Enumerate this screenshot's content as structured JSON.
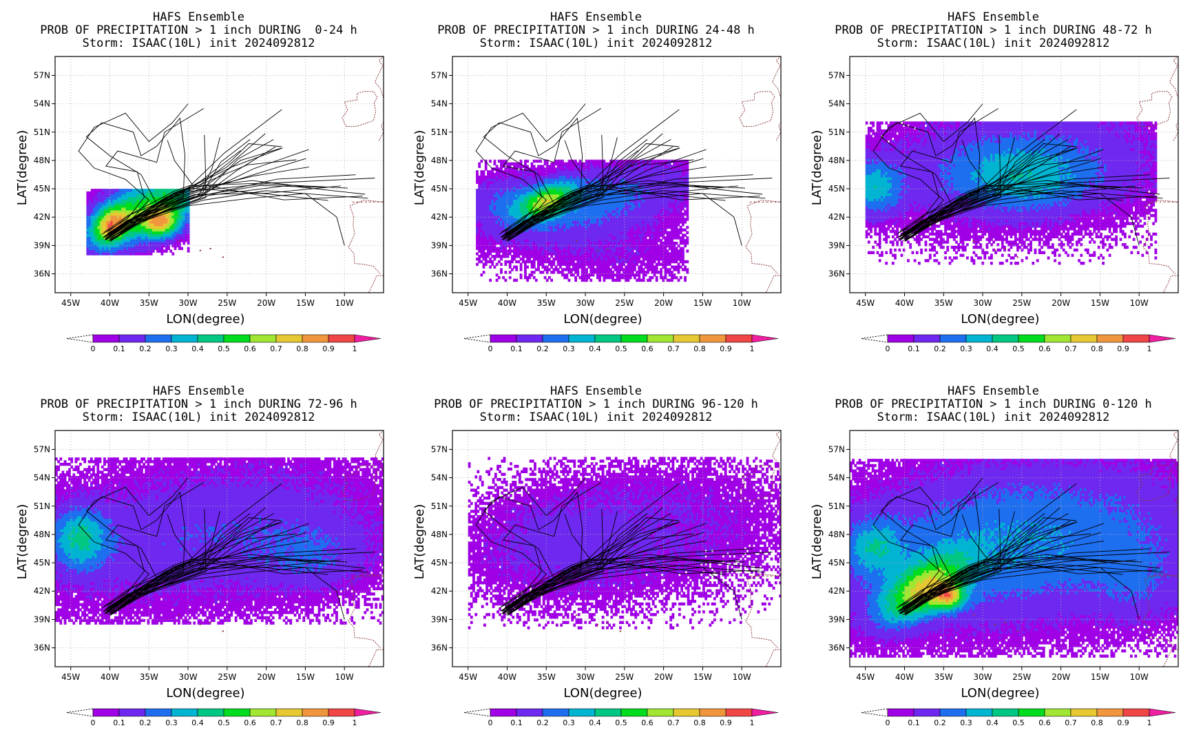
{
  "figure_title": "HAFS Ensemble",
  "colorbar": {
    "labels": [
      "0",
      "0.1",
      "0.2",
      "0.3",
      "0.4",
      "0.5",
      "0.6",
      "0.7",
      "0.8",
      "0.9",
      "1"
    ],
    "colors": [
      "#a000e6",
      "#6e28f0",
      "#1e6ef0",
      "#00b4d2",
      "#00c882",
      "#00dc1e",
      "#a0e632",
      "#e6c832",
      "#f0963c",
      "#f04646",
      "#f01ea0"
    ]
  },
  "land_border_color": "#8b3a3a",
  "track_color": "#000000",
  "chart_data": [
    {
      "type": "heatmap",
      "title": "HAFS Ensemble",
      "subtitle": "PROB OF PRECIPITATION > 1 inch DURING  0-24 h",
      "storm_line": "Storm: ISAAC(10L) init 2024092812",
      "period": "0-24 h",
      "xlabel": "LON(degree)",
      "ylabel": "LAT(degree)",
      "xlim": [
        -47,
        -5
      ],
      "ylim": [
        34,
        59
      ],
      "x_ticks": [
        "45W",
        "40W",
        "35W",
        "30W",
        "25W",
        "20W",
        "15W",
        "10W"
      ],
      "y_ticks": [
        "36N",
        "39N",
        "42N",
        "45N",
        "48N",
        "51N",
        "54N",
        "57N"
      ],
      "grid": true,
      "max_prob_location": [
        -40,
        41
      ],
      "max_prob": 0.9
    },
    {
      "type": "heatmap",
      "title": "HAFS Ensemble",
      "subtitle": "PROB OF PRECIPITATION > 1 inch DURING 24-48 h",
      "storm_line": "Storm: ISAAC(10L) init 2024092812",
      "period": "24-48 h",
      "xlabel": "LON(degree)",
      "ylabel": "LAT(degree)",
      "xlim": [
        -47,
        -5
      ],
      "ylim": [
        34,
        59
      ],
      "x_ticks": [
        "45W",
        "40W",
        "35W",
        "30W",
        "25W",
        "20W",
        "15W",
        "10W"
      ],
      "y_ticks": [
        "36N",
        "39N",
        "42N",
        "45N",
        "48N",
        "51N",
        "54N",
        "57N"
      ],
      "grid": true,
      "max_prob_location": [
        -34,
        43.5
      ],
      "max_prob": 0.7
    },
    {
      "type": "heatmap",
      "title": "HAFS Ensemble",
      "subtitle": "PROB OF PRECIPITATION > 1 inch DURING 48-72 h",
      "storm_line": "Storm: ISAAC(10L) init 2024092812",
      "period": "48-72 h",
      "xlabel": "LON(degree)",
      "ylabel": "LAT(degree)",
      "xlim": [
        -47,
        -5
      ],
      "ylim": [
        34,
        59
      ],
      "x_ticks": [
        "45W",
        "40W",
        "35W",
        "30W",
        "25W",
        "20W",
        "15W",
        "10W"
      ],
      "y_ticks": [
        "36N",
        "39N",
        "42N",
        "45N",
        "48N",
        "51N",
        "54N",
        "57N"
      ],
      "grid": true,
      "max_prob_location": [
        -28,
        47
      ],
      "max_prob": 0.4
    },
    {
      "type": "heatmap",
      "title": "HAFS Ensemble",
      "subtitle": "PROB OF PRECIPITATION > 1 inch DURING 72-96 h",
      "storm_line": "Storm: ISAAC(10L) init 2024092812",
      "period": "72-96 h",
      "xlabel": "LON(degree)",
      "ylabel": "LAT(degree)",
      "xlim": [
        -47,
        -5
      ],
      "ylim": [
        34,
        59
      ],
      "x_ticks": [
        "45W",
        "40W",
        "35W",
        "30W",
        "25W",
        "20W",
        "15W",
        "10W"
      ],
      "y_ticks": [
        "36N",
        "39N",
        "42N",
        "45N",
        "48N",
        "51N",
        "54N",
        "57N"
      ],
      "grid": true,
      "max_prob_location": [
        -44,
        47.5
      ],
      "max_prob": 0.4
    },
    {
      "type": "heatmap",
      "title": "HAFS Ensemble",
      "subtitle": "PROB OF PRECIPITATION > 1 inch DURING 96-120 h",
      "storm_line": "Storm: ISAAC(10L) init 2024092812",
      "period": "96-120 h",
      "xlabel": "LON(degree)",
      "ylabel": "LAT(degree)",
      "xlim": [
        -47,
        -5
      ],
      "ylim": [
        34,
        59
      ],
      "x_ticks": [
        "45W",
        "40W",
        "35W",
        "30W",
        "25W",
        "20W",
        "15W",
        "10W"
      ],
      "y_ticks": [
        "36N",
        "39N",
        "42N",
        "45N",
        "48N",
        "51N",
        "54N",
        "57N"
      ],
      "grid": true,
      "max_prob_location": [
        -25,
        47
      ],
      "max_prob": 0.2
    },
    {
      "type": "heatmap",
      "title": "HAFS Ensemble",
      "subtitle": "PROB OF PRECIPITATION > 1 inch DURING 0-120 h",
      "storm_line": "Storm: ISAAC(10L) init 2024092812",
      "period": "0-120 h",
      "xlabel": "LON(degree)",
      "ylabel": "LAT(degree)",
      "xlim": [
        -47,
        -5
      ],
      "ylim": [
        34,
        59
      ],
      "x_ticks": [
        "45W",
        "40W",
        "35W",
        "30W",
        "25W",
        "20W",
        "15W",
        "10W"
      ],
      "y_ticks": [
        "36N",
        "39N",
        "42N",
        "45N",
        "48N",
        "51N",
        "54N",
        "57N"
      ],
      "grid": true,
      "max_prob_location": [
        -38,
        41.5
      ],
      "max_prob": 0.9
    }
  ]
}
